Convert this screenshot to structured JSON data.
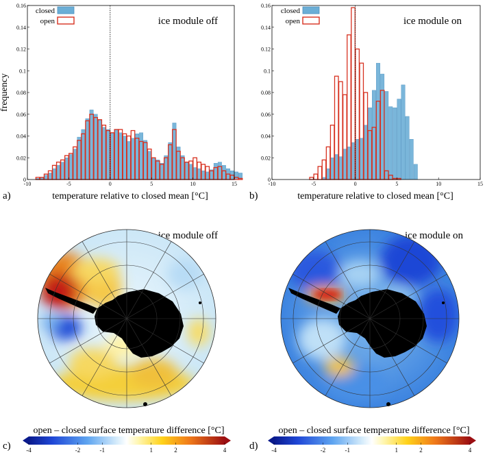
{
  "chart_data": [
    {
      "type": "bar",
      "panel_label": "a)",
      "annotation": "ice module off",
      "xlabel": "temperature relative to closed mean [°C]",
      "ylabel": "frequency",
      "xlim": [
        -10,
        15
      ],
      "ylim": [
        0,
        0.16
      ],
      "xticks": [
        "-10",
        "-5",
        "0",
        "5",
        "10",
        "15"
      ],
      "yticks": [
        "0",
        "0.02",
        "0.04",
        "0.06",
        "0.08",
        "0.1",
        "0.12",
        "0.14",
        "0.16"
      ],
      "reference_line_x": 0,
      "bin_start": -9,
      "bin_width": 0.5,
      "series": [
        {
          "name": "closed",
          "style": "filled",
          "color": "#6baed6",
          "values": [
            0.001,
            0.002,
            0.004,
            0.006,
            0.01,
            0.013,
            0.016,
            0.02,
            0.023,
            0.028,
            0.039,
            0.046,
            0.056,
            0.064,
            0.06,
            0.055,
            0.048,
            0.046,
            0.043,
            0.046,
            0.043,
            0.04,
            0.035,
            0.038,
            0.042,
            0.043,
            0.036,
            0.026,
            0.02,
            0.018,
            0.015,
            0.022,
            0.034,
            0.052,
            0.03,
            0.022,
            0.016,
            0.014,
            0.011,
            0.01,
            0.008,
            0.007,
            0.009,
            0.015,
            0.016,
            0.013,
            0.01,
            0.008,
            0.007,
            0.006
          ]
        },
        {
          "name": "open",
          "style": "outline",
          "color": "#d7301f",
          "values": [
            0.002,
            0.002,
            0.005,
            0.008,
            0.013,
            0.016,
            0.018,
            0.022,
            0.024,
            0.03,
            0.036,
            0.042,
            0.054,
            0.06,
            0.057,
            0.055,
            0.05,
            0.045,
            0.043,
            0.046,
            0.046,
            0.042,
            0.04,
            0.045,
            0.038,
            0.035,
            0.034,
            0.028,
            0.02,
            0.017,
            0.014,
            0.02,
            0.032,
            0.046,
            0.026,
            0.02,
            0.016,
            0.017,
            0.02,
            0.016,
            0.014,
            0.012,
            0.008,
            0.011,
            0.012,
            0.008,
            0.005,
            0.004,
            0.002,
            0.001
          ]
        }
      ]
    },
    {
      "type": "bar",
      "panel_label": "b)",
      "annotation": "ice module on",
      "xlabel": "temperature relative to closed mean [°C]",
      "ylabel": "",
      "xlim": [
        -10,
        15
      ],
      "ylim": [
        0,
        0.16
      ],
      "xticks": [
        "-10",
        "-5",
        "0",
        "5",
        "10",
        "15"
      ],
      "yticks": [
        "0",
        "0.02",
        "0.04",
        "0.06",
        "0.08",
        "0.1",
        "0.12",
        "0.14",
        "0.16"
      ],
      "reference_line_x": 0,
      "bin_start": -6,
      "bin_width": 0.5,
      "series": [
        {
          "name": "closed",
          "style": "filled",
          "color": "#6baed6",
          "values": [
            0,
            0,
            0,
            0,
            0.002,
            0.01,
            0.02,
            0.023,
            0.021,
            0.028,
            0.03,
            0.034,
            0.037,
            0.038,
            0.05,
            0.066,
            0.082,
            0.107,
            0.097,
            0.081,
            0.067,
            0.066,
            0.074,
            0.087,
            0.058,
            0.037,
            0.014,
            0,
            0,
            0
          ]
        },
        {
          "name": "open",
          "style": "outline",
          "color": "#d7301f",
          "values": [
            0,
            0.002,
            0.005,
            0.012,
            0.018,
            0.03,
            0.05,
            0.095,
            0.09,
            0.078,
            0.133,
            0.158,
            0.12,
            0.107,
            0.08,
            0.045,
            0.048,
            0.072,
            0.082,
            0.008,
            0.004,
            0.001,
            0.001,
            0,
            0,
            0,
            0,
            0,
            0,
            0
          ]
        }
      ]
    },
    {
      "type": "heatmap",
      "panel_label": "c)",
      "annotation": "ice module off",
      "projection": "south polar stereographic",
      "colorbar_label": "open – closed surface temperature difference [°C]",
      "colorbar_range": [
        -4,
        4
      ],
      "colorbar_ticks": [
        "-4",
        "-2",
        "-1",
        "1",
        "2",
        "4"
      ]
    },
    {
      "type": "heatmap",
      "panel_label": "d)",
      "annotation": "ice module on",
      "projection": "south polar stereographic",
      "colorbar_label": "open – closed surface temperature difference [°C]",
      "colorbar_range": [
        -4,
        4
      ],
      "colorbar_ticks": [
        "-4",
        "-2",
        "-1",
        "1",
        "2",
        "4"
      ]
    }
  ]
}
